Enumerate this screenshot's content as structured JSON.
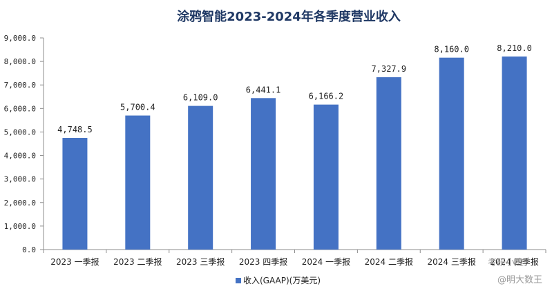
{
  "chart_data": {
    "type": "bar",
    "title": "涂鸦智能2023-2024年各季度营业收入",
    "categories": [
      "2023 一季报",
      "2023 二季报",
      "2023 三季报",
      "2023 四季报",
      "2024 一季报",
      "2024 二季报",
      "2024 三季报",
      "2024 四季报"
    ],
    "series": [
      {
        "name": "收入(GAAP)(万美元)",
        "values": [
          4748.5,
          5700.4,
          6109.0,
          6441.1,
          6166.2,
          7327.9,
          8160.0,
          8210.0
        ]
      }
    ],
    "data_labels": [
      "4,748.5",
      "5,700.4",
      "6,109.0",
      "6,441.1",
      "6,166.2",
      "7,327.9",
      "8,160.0",
      "8,210.0"
    ],
    "yticks": [
      "0.0",
      "1,000.0",
      "2,000.0",
      "3,000.0",
      "4,000.0",
      "5,000.0",
      "6,000.0",
      "7,000.0",
      "8,000.0",
      "9,000.0"
    ],
    "ylim": [
      0,
      9000
    ],
    "xlabel": "",
    "ylabel": "",
    "legend": "bottom",
    "color": "#4472c4"
  },
  "watermark": {
    "top": "考研小应",
    "bottom": "@明大数王"
  }
}
